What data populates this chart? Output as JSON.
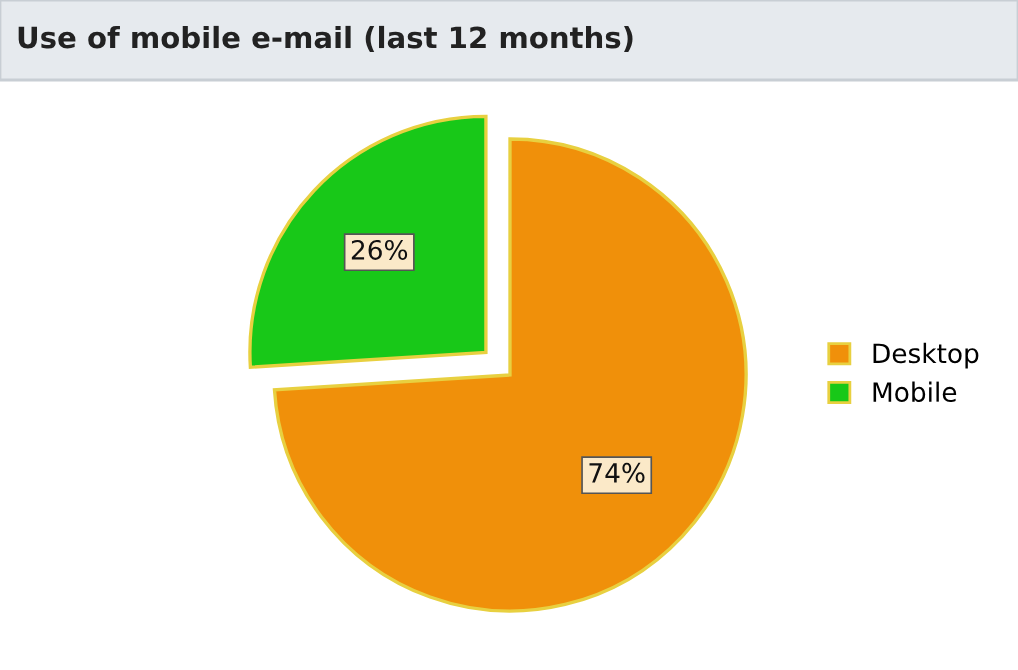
{
  "chart_data": {
    "type": "pie",
    "title": "Use of mobile e-mail (last 12 months)",
    "categories": [
      "Desktop",
      "Mobile"
    ],
    "values": [
      74,
      26
    ],
    "colors": [
      "#f0900a",
      "#18c818"
    ],
    "value_labels": [
      "74%",
      "26%"
    ],
    "legend": "right"
  }
}
